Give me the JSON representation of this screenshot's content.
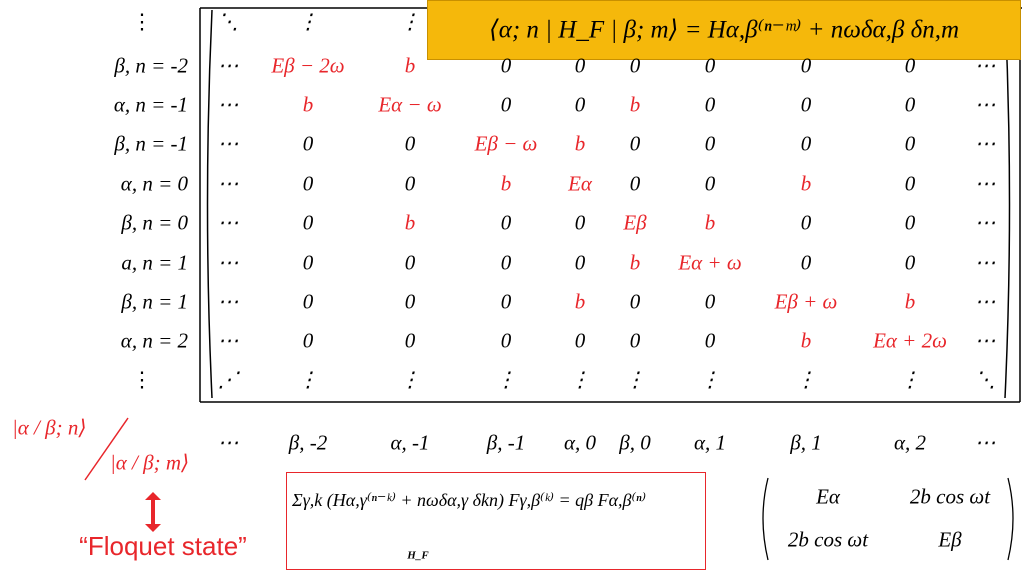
{
  "header": {
    "formula": "⟨α; n | H_F | β; m⟩ = Hα,β⁽ⁿ⁻ᵐ⁾ + nωδα,β δn,m"
  },
  "row_labels": [
    "⋮",
    "β, n = -2",
    "α, n = -1",
    "β, n = -1",
    "α, n = 0",
    "β, n = 0",
    "a, n = 1",
    "β, n = 1",
    "α, n = 2",
    "⋮"
  ],
  "highlight_color": "#e8262b",
  "matrix": [
    [
      {
        "text": "⋱"
      },
      {
        "text": "⋮"
      },
      {
        "text": "⋮"
      },
      null,
      null,
      null,
      null,
      null,
      null,
      null
    ],
    [
      {
        "text": "⋯"
      },
      {
        "text": "Eβ − 2ω",
        "red": true
      },
      {
        "text": "b",
        "red": true
      },
      {
        "text": "0"
      },
      {
        "text": "0"
      },
      {
        "text": "0"
      },
      {
        "text": "0"
      },
      {
        "text": "0"
      },
      {
        "text": "0"
      },
      {
        "text": "⋯"
      }
    ],
    [
      {
        "text": "⋯"
      },
      {
        "text": "b",
        "red": true
      },
      {
        "text": "Eα − ω",
        "red": true
      },
      {
        "text": "0"
      },
      {
        "text": "0"
      },
      {
        "text": "b",
        "red": true
      },
      {
        "text": "0"
      },
      {
        "text": "0"
      },
      {
        "text": "0"
      },
      {
        "text": "⋯"
      }
    ],
    [
      {
        "text": "⋯"
      },
      {
        "text": "0"
      },
      {
        "text": "0"
      },
      {
        "text": "Eβ − ω",
        "red": true
      },
      {
        "text": "b",
        "red": true
      },
      {
        "text": "0"
      },
      {
        "text": "0"
      },
      {
        "text": "0"
      },
      {
        "text": "0"
      },
      {
        "text": "⋯"
      }
    ],
    [
      {
        "text": "⋯"
      },
      {
        "text": "0"
      },
      {
        "text": "0"
      },
      {
        "text": "b",
        "red": true
      },
      {
        "text": "Eα",
        "red": true
      },
      {
        "text": "0"
      },
      {
        "text": "0"
      },
      {
        "text": "b",
        "red": true
      },
      {
        "text": "0"
      },
      {
        "text": "⋯"
      }
    ],
    [
      {
        "text": "⋯"
      },
      {
        "text": "0"
      },
      {
        "text": "b",
        "red": true
      },
      {
        "text": "0"
      },
      {
        "text": "0"
      },
      {
        "text": "Eβ",
        "red": true
      },
      {
        "text": "b",
        "red": true
      },
      {
        "text": "0"
      },
      {
        "text": "0"
      },
      {
        "text": "⋯"
      }
    ],
    [
      {
        "text": "⋯"
      },
      {
        "text": "0"
      },
      {
        "text": "0"
      },
      {
        "text": "0"
      },
      {
        "text": "0"
      },
      {
        "text": "b",
        "red": true
      },
      {
        "text": "Eα + ω",
        "red": true
      },
      {
        "text": "0"
      },
      {
        "text": "0"
      },
      {
        "text": "⋯"
      }
    ],
    [
      {
        "text": "⋯"
      },
      {
        "text": "0"
      },
      {
        "text": "0"
      },
      {
        "text": "0"
      },
      {
        "text": "b",
        "red": true
      },
      {
        "text": "0"
      },
      {
        "text": "0"
      },
      {
        "text": "Eβ + ω",
        "red": true
      },
      {
        "text": "b",
        "red": true
      },
      {
        "text": "⋯"
      }
    ],
    [
      {
        "text": "⋯"
      },
      {
        "text": "0"
      },
      {
        "text": "0"
      },
      {
        "text": "0"
      },
      {
        "text": "0"
      },
      {
        "text": "0"
      },
      {
        "text": "0"
      },
      {
        "text": "b",
        "red": true
      },
      {
        "text": "Eα + 2ω",
        "red": true
      },
      {
        "text": "⋯"
      }
    ],
    [
      {
        "text": "⋰"
      },
      {
        "text": "⋮"
      },
      {
        "text": "⋮"
      },
      {
        "text": "⋮"
      },
      {
        "text": "⋮"
      },
      {
        "text": "⋮"
      },
      {
        "text": "⋮"
      },
      {
        "text": "⋮"
      },
      {
        "text": "⋮"
      },
      {
        "text": "⋱"
      }
    ]
  ],
  "corner": {
    "ket_n": "|α / β; n⟩",
    "ket_m": "|α / β; m⟩"
  },
  "column_labels": [
    "⋯",
    "β, -2",
    "α, -1",
    "β, -1",
    "α, 0",
    "β, 0",
    "α, 1",
    "β, 1",
    "α, 2",
    "⋯"
  ],
  "sum_formula": {
    "equation": "Σγ,k (Hα,γ⁽ⁿ⁻ᵏ⁾ + nωδα,γ δkn) Fγ,β⁽ᵏ⁾ = qβ Fα,β⁽ⁿ⁾",
    "underbrace": "H_F"
  },
  "floquet_label": "“Floquet state”",
  "small_matrix": [
    [
      "Eα",
      "2b cos ωt"
    ],
    [
      "2b cos ωt",
      "Eβ"
    ]
  ]
}
